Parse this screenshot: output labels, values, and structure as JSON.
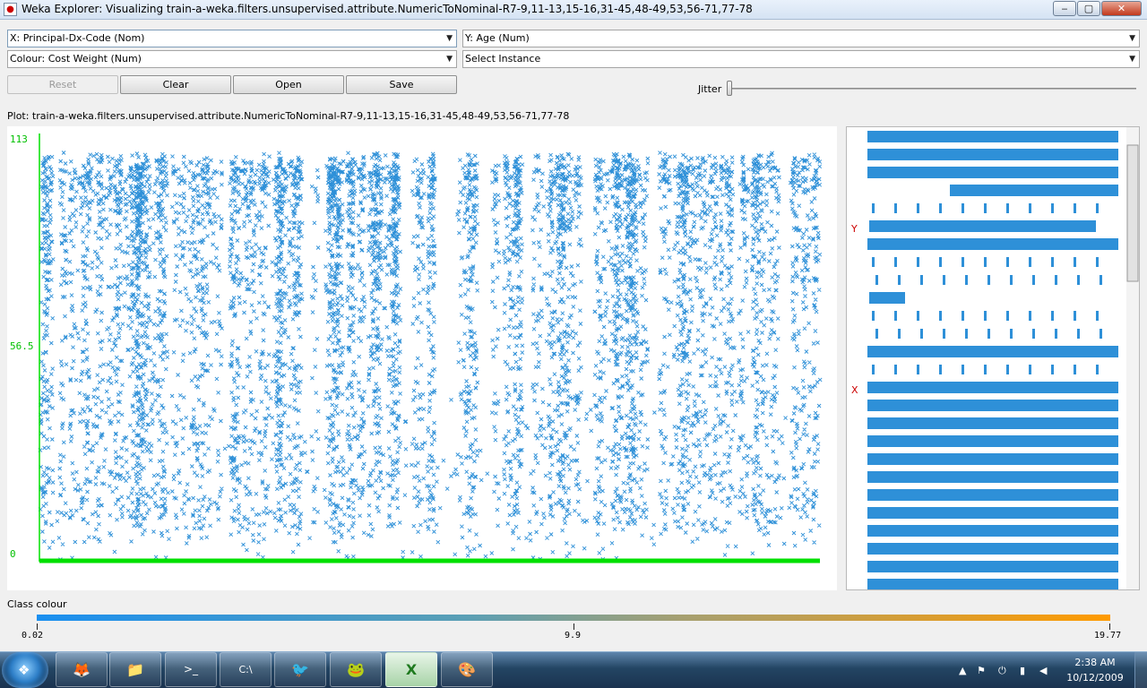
{
  "window": {
    "title": "Weka Explorer: Visualizing train-a-weka.filters.unsupervised.attribute.NumericToNominal-R7-9,11-13,15-16,31-45,48-49,53,56-71,77-78",
    "icon": "weka-icon",
    "minimize_label": "‒",
    "maximize_label": "▢",
    "close_label": "✕"
  },
  "controls": {
    "x_select": "X: Principal-Dx-Code (Nom)",
    "y_select": "Y: Age (Num)",
    "colour_select": "Colour: Cost Weight (Num)",
    "instance_select": "Select Instance",
    "reset_label": "Reset",
    "clear_label": "Clear",
    "open_label": "Open",
    "save_label": "Save",
    "jitter_label": "Jitter",
    "jitter_value": 0
  },
  "plot": {
    "title": "Plot: train-a-weka.filters.unsupervised.attribute.NumericToNominal-R7-9,11-13,15-16,31-45,48-49,53,56-71,77-78",
    "point_color": "#2e90d8",
    "axis_color": "#00e000"
  },
  "chart_data": {
    "type": "scatter",
    "xlabel": "Principal-Dx-Code (Nom)",
    "ylabel": "Age (Num)",
    "ylim": [
      0,
      113
    ],
    "y_ticks": [
      "113",
      "56.5",
      "0"
    ],
    "marker": "×",
    "grid": false
  },
  "matrix": {
    "y_marker": "Y",
    "x_marker": "X",
    "bar_color": "#2e90d8",
    "marker_color": "#cc0000"
  },
  "class_colour": {
    "label": "Class colour",
    "min": "0.02",
    "mid": "9.9",
    "max": "19.77",
    "start_color": "#1a8ff0",
    "end_color": "#ff9b00"
  },
  "taskbar": {
    "apps": [
      {
        "name": "firefox",
        "icon": "firefox-icon",
        "glyph": "🦊"
      },
      {
        "name": "explorer",
        "icon": "folder-icon",
        "glyph": "📁"
      },
      {
        "name": "terminal",
        "icon": "terminal-icon",
        "glyph": ">_"
      },
      {
        "name": "cmd",
        "icon": "cmd-icon",
        "glyph": "C:\\"
      },
      {
        "name": "weka",
        "icon": "weka-bird-icon",
        "glyph": "🐦"
      },
      {
        "name": "frog",
        "icon": "frog-icon",
        "glyph": "🐸"
      },
      {
        "name": "excel",
        "icon": "excel-icon",
        "glyph": "X"
      },
      {
        "name": "paint",
        "icon": "paint-icon",
        "glyph": "🎨"
      }
    ],
    "time": "2:38 AM",
    "date": "10/12/2009"
  }
}
